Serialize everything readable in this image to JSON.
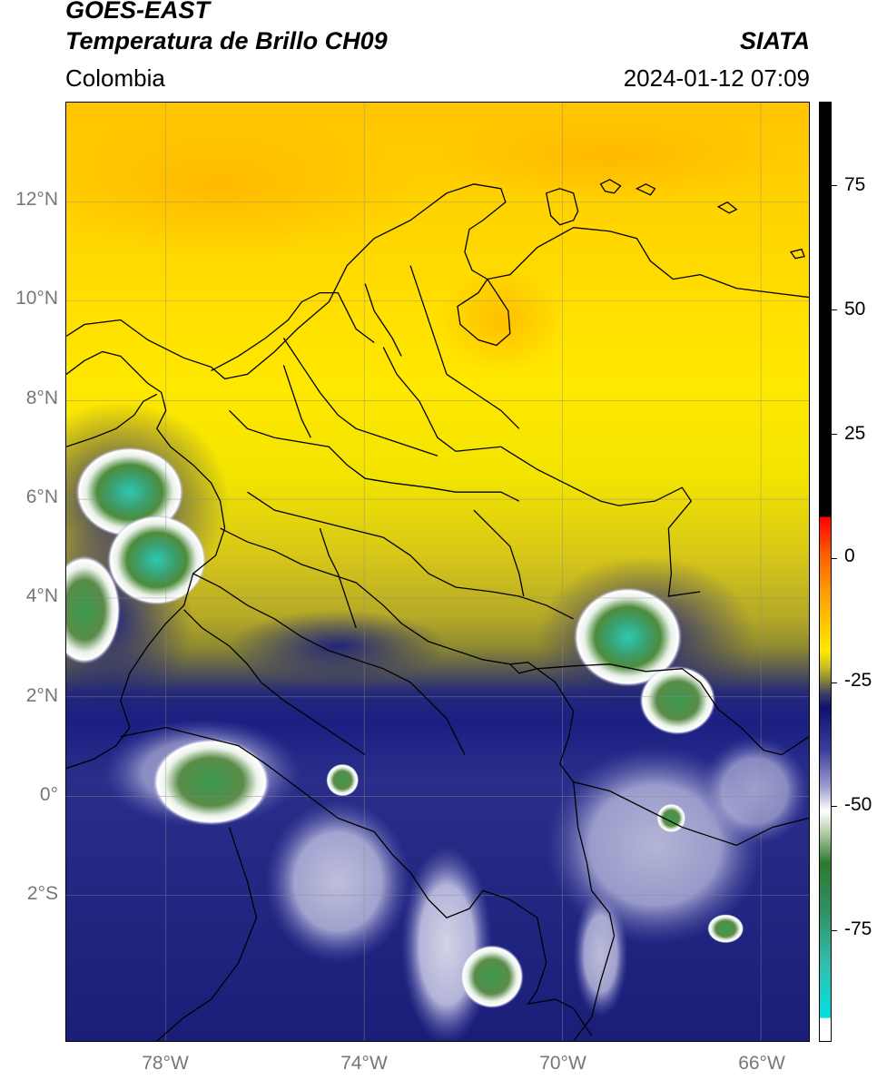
{
  "header": {
    "satellite": "GOES-EAST",
    "product": "Temperatura de Brillo CH09",
    "organization": "SIATA",
    "region": "Colombia",
    "datetime": "2024-01-12 07:09"
  },
  "map": {
    "lat_ticks": [
      "12°N",
      "10°N",
      "8°N",
      "6°N",
      "4°N",
      "2°N",
      "0°",
      "2°S"
    ],
    "lon_ticks": [
      "78°W",
      "74°W",
      "70°W",
      "66°W"
    ]
  },
  "colorbar": {
    "ticks": [
      "75",
      "50",
      "25",
      "0",
      "-25",
      "-50",
      "-75"
    ]
  },
  "colors": {
    "warm_yellow": "#ffe600",
    "orange": "#ffb400",
    "olive": "#9a9a20",
    "navy": "#1a1f7a",
    "white": "#ffffff",
    "green": "#2e8b3a",
    "teal": "#2ec4b0",
    "red": "#ff2000",
    "black": "#000000"
  }
}
